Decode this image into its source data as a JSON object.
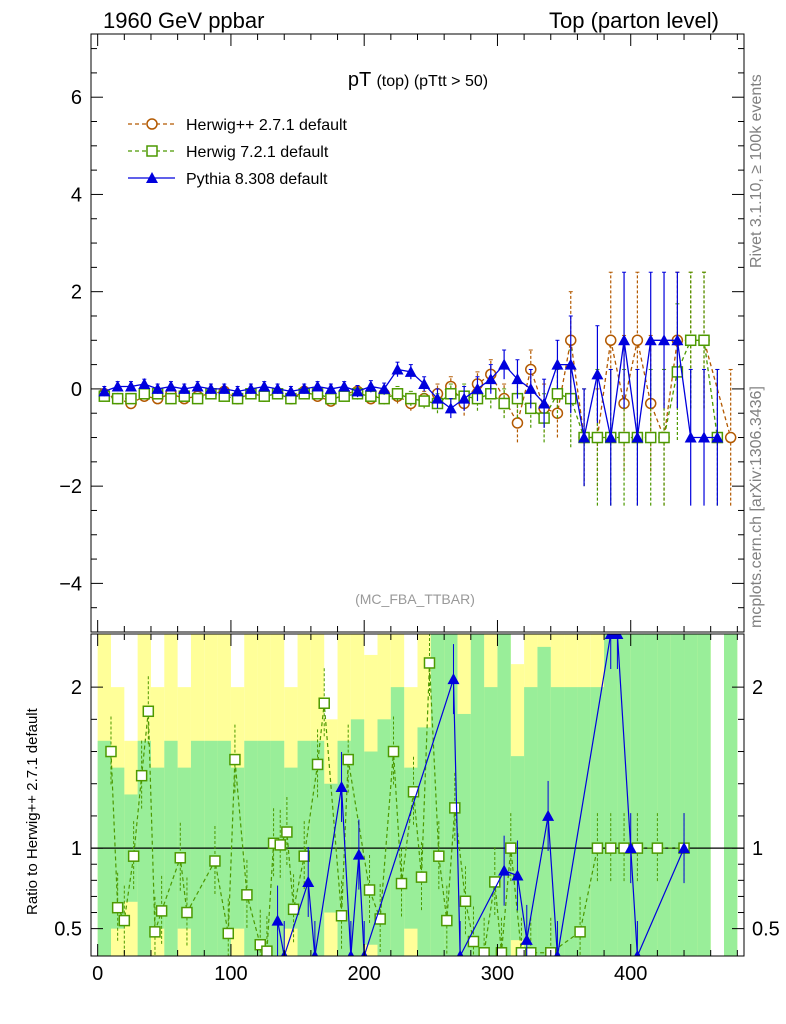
{
  "header": {
    "left": "1960 GeV ppbar",
    "right": "Top (parton level)"
  },
  "side_labels": {
    "rivet": "Rivet 3.1.10, ≥ 100k events",
    "mcplots": "mcplots.cern.ch [arXiv:1306.3436]"
  },
  "chart_data": [
    {
      "type": "line",
      "title_main": "pT",
      "title_sub": "(top) (pTtt > 50)",
      "watermark": "(MC_FBA_TTBAR)",
      "xlim": [
        -5,
        485
      ],
      "ylim": [
        -5,
        7.3
      ],
      "xticks": [
        "0",
        "100",
        "200",
        "300",
        "400"
      ],
      "yticks": [
        "−4",
        "−2",
        "0",
        "2",
        "4",
        "6"
      ],
      "legend_position": "top-left",
      "series": [
        {
          "name": "Herwig++ 2.7.1 default",
          "color": "#b35900",
          "marker": "circle",
          "x": [
            5,
            15,
            25,
            35,
            45,
            55,
            65,
            75,
            85,
            95,
            105,
            115,
            125,
            135,
            145,
            155,
            165,
            175,
            185,
            195,
            205,
            215,
            225,
            235,
            245,
            255,
            265,
            275,
            285,
            295,
            305,
            315,
            325,
            335,
            345,
            355,
            365,
            375,
            385,
            395,
            405,
            415,
            425,
            435,
            445,
            455,
            475
          ],
          "y": [
            -0.1,
            -0.2,
            -0.3,
            -0.15,
            -0.2,
            -0.1,
            -0.2,
            -0.15,
            -0.1,
            -0.05,
            -0.2,
            -0.1,
            -0.15,
            -0.1,
            -0.2,
            -0.05,
            -0.15,
            -0.25,
            -0.1,
            -0.05,
            -0.2,
            -0.1,
            -0.15,
            -0.3,
            -0.2,
            -0.1,
            0.05,
            -0.3,
            0.1,
            0.3,
            -0.2,
            -0.7,
            0.4,
            -0.4,
            -0.5,
            1.0,
            -1.0,
            -1.0,
            1.0,
            -0.3,
            1.0,
            -0.3,
            -1.0,
            1.0,
            1.0,
            1.0,
            -1.0
          ],
          "err": [
            0.1,
            0.1,
            0.1,
            0.1,
            0.1,
            0.1,
            0.1,
            0.1,
            0.1,
            0.1,
            0.1,
            0.1,
            0.1,
            0.1,
            0.1,
            0.1,
            0.1,
            0.1,
            0.1,
            0.12,
            0.12,
            0.12,
            0.15,
            0.15,
            0.15,
            0.2,
            0.2,
            0.25,
            0.25,
            0.3,
            0.3,
            0.4,
            0.4,
            0.5,
            0.5,
            1.0,
            1.0,
            1.0,
            1.4,
            1.4,
            1.4,
            1.4,
            1.4,
            1.4,
            1.4,
            1.4,
            1.4
          ]
        },
        {
          "name": "Herwig 7.2.1 default",
          "color": "#4c9900",
          "marker": "square",
          "x": [
            5,
            15,
            25,
            35,
            45,
            55,
            65,
            75,
            85,
            95,
            105,
            115,
            125,
            135,
            145,
            155,
            165,
            175,
            185,
            195,
            205,
            215,
            225,
            235,
            245,
            255,
            265,
            275,
            285,
            295,
            305,
            315,
            325,
            335,
            345,
            355,
            365,
            375,
            385,
            395,
            405,
            415,
            425,
            435,
            445,
            455,
            465
          ],
          "y": [
            -0.15,
            -0.2,
            -0.2,
            -0.1,
            -0.1,
            -0.2,
            -0.15,
            -0.2,
            -0.1,
            -0.15,
            -0.2,
            -0.1,
            -0.15,
            -0.1,
            -0.2,
            -0.1,
            -0.1,
            -0.2,
            -0.15,
            -0.1,
            -0.15,
            -0.2,
            -0.1,
            -0.2,
            -0.25,
            -0.3,
            -0.1,
            -0.15,
            -0.2,
            -0.1,
            -0.3,
            -0.2,
            -0.4,
            -0.6,
            -0.1,
            -0.2,
            -1.0,
            -1.0,
            -1.0,
            -1.0,
            -1.0,
            -1.0,
            -1.0,
            0.35,
            1.0,
            1.0,
            -1.0
          ],
          "err": [
            0.1,
            0.1,
            0.1,
            0.1,
            0.1,
            0.1,
            0.1,
            0.1,
            0.1,
            0.1,
            0.1,
            0.1,
            0.1,
            0.1,
            0.1,
            0.1,
            0.1,
            0.1,
            0.1,
            0.12,
            0.12,
            0.12,
            0.15,
            0.15,
            0.15,
            0.2,
            0.2,
            0.25,
            0.25,
            0.3,
            0.3,
            0.4,
            0.4,
            0.5,
            0.5,
            1.0,
            1.0,
            1.4,
            1.4,
            1.4,
            1.4,
            1.4,
            1.4,
            1.4,
            1.4,
            1.4,
            1.4
          ]
        },
        {
          "name": "Pythia 8.308 default",
          "color": "#0000dd",
          "marker": "triangle",
          "x": [
            5,
            15,
            25,
            35,
            45,
            55,
            65,
            75,
            85,
            95,
            105,
            115,
            125,
            135,
            145,
            155,
            165,
            175,
            185,
            195,
            205,
            215,
            225,
            235,
            245,
            255,
            265,
            275,
            285,
            295,
            305,
            315,
            325,
            335,
            345,
            355,
            365,
            375,
            385,
            395,
            405,
            415,
            425,
            435,
            445,
            455,
            465
          ],
          "y": [
            -0.05,
            0.05,
            0.05,
            0.1,
            0.0,
            0.05,
            0.0,
            0.05,
            0.0,
            0.0,
            -0.05,
            0.0,
            0.05,
            0.0,
            -0.05,
            0.0,
            0.05,
            0.0,
            0.05,
            -0.05,
            0.05,
            0.0,
            0.4,
            0.35,
            0.1,
            -0.2,
            -0.4,
            -0.2,
            0.0,
            0.2,
            0.5,
            0.2,
            0.0,
            -0.3,
            0.5,
            0.5,
            -1.0,
            0.3,
            -1.0,
            1.0,
            -1.0,
            1.0,
            1.0,
            1.0,
            -1.0,
            -1.0,
            -1.0
          ],
          "err": [
            0.1,
            0.1,
            0.1,
            0.1,
            0.1,
            0.1,
            0.1,
            0.1,
            0.1,
            0.1,
            0.1,
            0.1,
            0.1,
            0.1,
            0.1,
            0.1,
            0.1,
            0.1,
            0.1,
            0.12,
            0.12,
            0.12,
            0.15,
            0.15,
            0.15,
            0.2,
            0.2,
            0.25,
            0.25,
            0.3,
            0.3,
            0.4,
            0.4,
            0.5,
            0.5,
            1.0,
            1.0,
            1.0,
            1.4,
            1.4,
            1.4,
            1.4,
            1.4,
            1.4,
            1.4,
            1.4,
            1.4
          ]
        }
      ]
    },
    {
      "type": "line",
      "ylabel": "Ratio to Herwig++ 2.7.1 default",
      "xlim": [
        -5,
        485
      ],
      "ylim": [
        0.33,
        2.33
      ],
      "xticks": [
        "0",
        "100",
        "200",
        "300",
        "400"
      ],
      "yticks": [
        "0.5",
        "1",
        "2"
      ],
      "reference_line": 1,
      "bands": [
        {
          "name": "Herwig++ 2.7.1 default uncertainty (2σ)",
          "color": "#ffff99"
        },
        {
          "name": "Herwig++ 2.7.1 default uncertainty (1σ)",
          "color": "#99ee99"
        }
      ],
      "series": [
        {
          "name": "Herwig 7.2.1 default",
          "color": "#4c9900",
          "marker": "square",
          "x": [
            10,
            15,
            20,
            27,
            33,
            38,
            43,
            48,
            62,
            67,
            88,
            98,
            103,
            112,
            122,
            127,
            132,
            137,
            142,
            147,
            155,
            165,
            170,
            183,
            188,
            204,
            212,
            222,
            228,
            237,
            243,
            249,
            256,
            262,
            268,
            276,
            282,
            290,
            298,
            303,
            310,
            318,
            325,
            340,
            362,
            375,
            385,
            395,
            405,
            420,
            440
          ],
          "y": [
            1.6,
            0.63,
            0.55,
            0.95,
            1.45,
            1.85,
            0.48,
            0.61,
            0.94,
            0.6,
            0.92,
            0.47,
            1.55,
            0.71,
            0.4,
            0.36,
            1.03,
            1.02,
            1.1,
            0.62,
            0.95,
            1.52,
            1.9,
            0.58,
            1.55,
            0.74,
            0.56,
            1.6,
            0.78,
            1.35,
            0.82,
            2.15,
            0.95,
            0.55,
            1.25,
            0.67,
            0.42,
            0.35,
            0.79,
            0.35,
            1.0,
            0.35,
            0.35,
            0.35,
            0.48,
            1.0,
            1.0,
            1.0,
            1.0,
            1.0,
            1.0
          ]
        },
        {
          "name": "Pythia 8.308 default",
          "color": "#0000dd",
          "marker": "triangle",
          "x": [
            135,
            140,
            158,
            163,
            183,
            190,
            196,
            200,
            267,
            272,
            305,
            315,
            322,
            338,
            345,
            385,
            390,
            400,
            405,
            440
          ],
          "y": [
            0.55,
            0.33,
            0.79,
            0.33,
            1.38,
            0.33,
            0.96,
            0.33,
            2.05,
            0.33,
            0.86,
            0.83,
            0.43,
            1.2,
            0.33,
            2.33,
            2.33,
            1.0,
            0.33,
            1.0
          ]
        }
      ]
    }
  ]
}
